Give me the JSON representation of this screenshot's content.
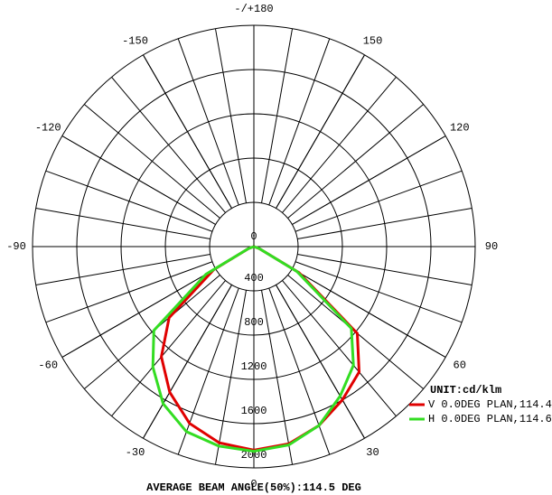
{
  "chart_data": {
    "type": "polar",
    "footer": "AVERAGE BEAM ANGLE(50%):114.5 DEG",
    "unit_label": "UNIT:cd/klm",
    "rlim": [
      0,
      2000
    ],
    "rticks": [
      0,
      400,
      800,
      1200,
      1600,
      2000
    ],
    "angle_ticks": [
      {
        "value": 180,
        "label": "-/+180"
      },
      150,
      120,
      90,
      60,
      30,
      0,
      -30,
      -60,
      -90,
      -120,
      -150
    ],
    "x": [
      -90,
      -80,
      -70,
      -60,
      -50,
      -40,
      -30,
      -20,
      -10,
      0,
      10,
      20,
      30,
      40,
      50,
      60,
      70,
      80,
      90
    ],
    "series": [
      {
        "name": "V 0.0DEG PLAN,114.4",
        "color": "#e00000",
        "values": [
          0,
          0,
          50,
          420,
          1000,
          1300,
          1520,
          1700,
          1800,
          1840,
          1810,
          1720,
          1600,
          1480,
          1220,
          470,
          50,
          0,
          0
        ]
      },
      {
        "name": "H 0.0DEG PLAN,114.6",
        "color": "#33dd22",
        "values": [
          0,
          0,
          50,
          500,
          1180,
          1420,
          1640,
          1780,
          1830,
          1850,
          1820,
          1720,
          1560,
          1400,
          1150,
          450,
          50,
          0,
          0
        ]
      }
    ]
  }
}
